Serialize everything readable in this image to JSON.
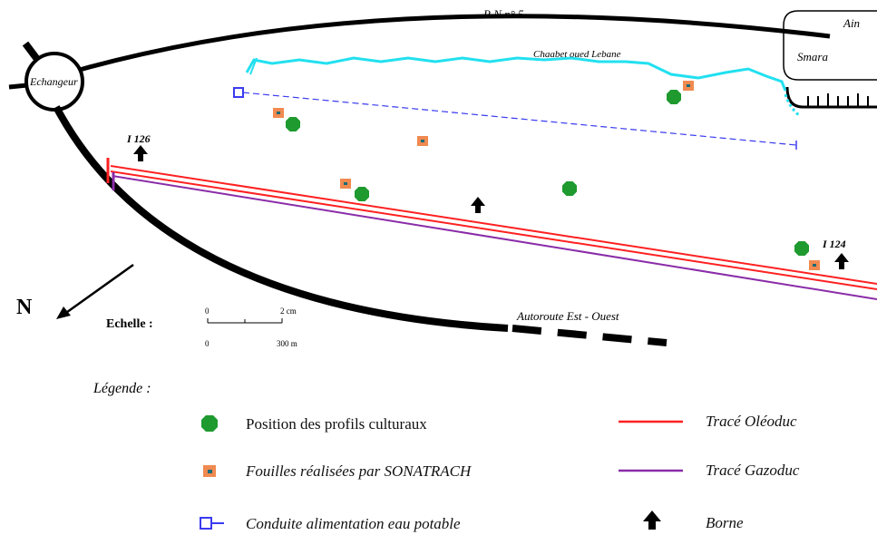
{
  "roads": {
    "rn5_label": "R N n° 5",
    "interchange_label": "Echangeur",
    "autoroute_label": "Autoroute Est - Ouest"
  },
  "places": {
    "ain_label": "Ain",
    "smara_label": "Smara",
    "river_label": "Chaabet oued Lebane"
  },
  "bornes": {
    "b1126": "I 126",
    "b1124": "I 124"
  },
  "north": {
    "label": "N"
  },
  "scale": {
    "title": "Echelle :",
    "top_zero": "0",
    "top_value": "2 cm",
    "bottom_zero": "0",
    "bottom_value": "300 m"
  },
  "legend": {
    "title": "Légende :",
    "profils": "Position des profils culturaux",
    "fouilles": "Fouilles réalisées par SONATRACH",
    "conduite": "Conduite alimentation eau potable",
    "oleoduc": "Tracé Oléoduc",
    "gazoduc": "Tracé Gazoduc",
    "borne": "Borne"
  },
  "colors": {
    "road": "#000000",
    "river": "#22e0f0",
    "oleoduc": "#ff2020",
    "gazoduc": "#8a2ca8",
    "profil": "#1e9a2e",
    "fouille_fill": "#f08a50",
    "fouille_center": "#1a6a78",
    "conduite": "#3b3bf0"
  }
}
